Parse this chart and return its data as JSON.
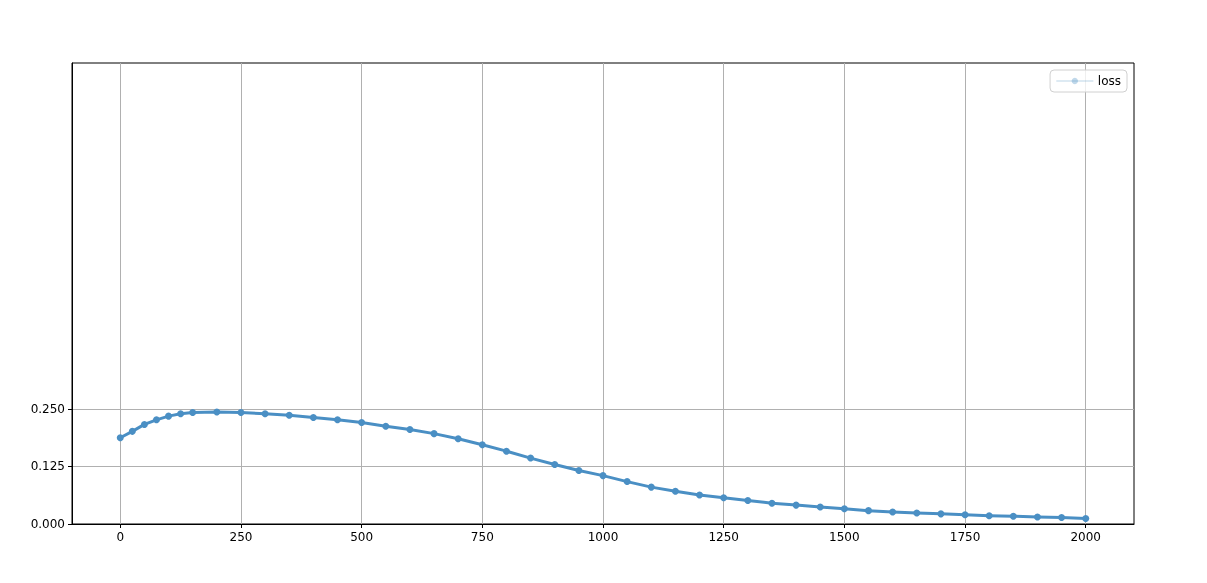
{
  "chart_data": {
    "type": "line",
    "x": [
      0,
      25,
      50,
      75,
      100,
      125,
      150,
      200,
      250,
      300,
      350,
      400,
      450,
      500,
      550,
      600,
      650,
      700,
      750,
      800,
      850,
      900,
      950,
      1000,
      1050,
      1100,
      1150,
      1200,
      1250,
      1300,
      1350,
      1400,
      1450,
      1500,
      1550,
      1600,
      1650,
      1700,
      1750,
      1800,
      1850,
      1900,
      1950,
      2000
    ],
    "series": [
      {
        "name": "loss",
        "color": "#4a8fc4",
        "values": [
          0.187,
          0.201,
          0.216,
          0.226,
          0.234,
          0.239,
          0.242,
          0.243,
          0.242,
          0.239,
          0.236,
          0.231,
          0.226,
          0.22,
          0.212,
          0.205,
          0.196,
          0.185,
          0.172,
          0.158,
          0.143,
          0.129,
          0.116,
          0.105,
          0.092,
          0.08,
          0.071,
          0.063,
          0.057,
          0.051,
          0.045,
          0.041,
          0.037,
          0.033,
          0.029,
          0.026,
          0.024,
          0.022,
          0.02,
          0.018,
          0.017,
          0.015,
          0.014,
          0.012
        ]
      }
    ],
    "xlim": [
      -100,
      2100
    ],
    "xticks": [
      0,
      250,
      500,
      750,
      1000,
      1250,
      1500,
      1750,
      2000
    ],
    "ylim": [
      0,
      1
    ],
    "yticks": [
      {
        "value": 0,
        "label": "0.000"
      },
      {
        "value": 0.125,
        "label": "0.125"
      },
      {
        "value": 0.25,
        "label": "0.250"
      }
    ],
    "grid": true,
    "legend": "top right",
    "marker": "circle",
    "line_style": "solid"
  }
}
